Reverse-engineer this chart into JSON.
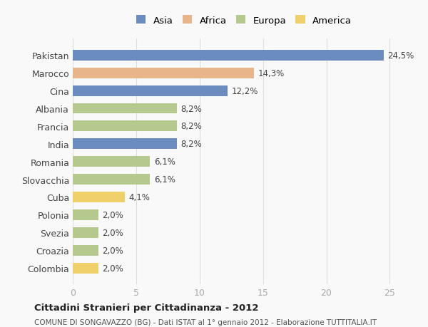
{
  "categories": [
    "Pakistan",
    "Marocco",
    "Cina",
    "Albania",
    "Francia",
    "India",
    "Romania",
    "Slovacchia",
    "Cuba",
    "Polonia",
    "Svezia",
    "Croazia",
    "Colombia"
  ],
  "values": [
    24.5,
    14.3,
    12.2,
    8.2,
    8.2,
    8.2,
    6.1,
    6.1,
    4.1,
    2.0,
    2.0,
    2.0,
    2.0
  ],
  "labels": [
    "24,5%",
    "14,3%",
    "12,2%",
    "8,2%",
    "8,2%",
    "8,2%",
    "6,1%",
    "6,1%",
    "4,1%",
    "2,0%",
    "2,0%",
    "2,0%",
    "2,0%"
  ],
  "continents": [
    "Asia",
    "Africa",
    "Asia",
    "Europa",
    "Europa",
    "Asia",
    "Europa",
    "Europa",
    "America",
    "Europa",
    "Europa",
    "Europa",
    "America"
  ],
  "colors": {
    "Asia": "#6b8cbf",
    "Africa": "#e8b48a",
    "Europa": "#b5c98e",
    "America": "#f0d06a"
  },
  "legend_order": [
    "Asia",
    "Africa",
    "Europa",
    "America"
  ],
  "title": "Cittadini Stranieri per Cittadinanza - 2012",
  "subtitle": "COMUNE DI SONGAVAZZO (BG) - Dati ISTAT al 1° gennaio 2012 - Elaborazione TUTTITALIA.IT",
  "xlim": [
    0,
    27
  ],
  "xticks": [
    0,
    5,
    10,
    15,
    20,
    25
  ],
  "background_color": "#f9f9f9",
  "grid_color": "#dddddd",
  "bar_height": 0.6
}
